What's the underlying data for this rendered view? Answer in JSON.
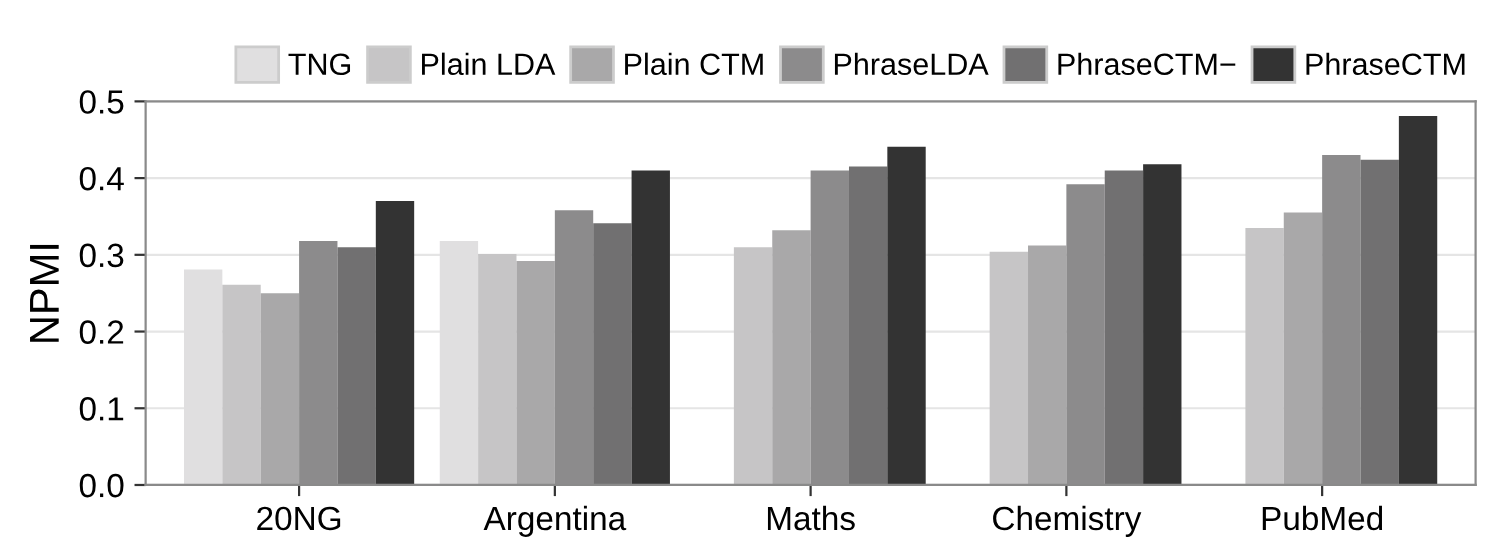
{
  "chart_data": {
    "type": "bar",
    "ylabel": "NPMI",
    "categories": [
      "20NG",
      "Argentina",
      "Maths",
      "Chemistry",
      "PubMed"
    ],
    "series": [
      {
        "name": "TNG",
        "color": "#e0dfe0",
        "values": [
          0.281,
          0.318,
          null,
          null,
          null
        ]
      },
      {
        "name": "Plain LDA",
        "color": "#c6c5c6",
        "values": [
          0.261,
          0.301,
          0.31,
          0.304,
          0.335
        ]
      },
      {
        "name": "Plain CTM",
        "color": "#a9a8a9",
        "values": [
          0.25,
          0.292,
          0.332,
          0.312,
          0.355
        ]
      },
      {
        "name": "PhraseLDA",
        "color": "#8c8b8c",
        "values": [
          0.318,
          0.358,
          0.41,
          0.392,
          0.43
        ]
      },
      {
        "name": "PhraseCTM−",
        "color": "#717071",
        "values": [
          0.31,
          0.341,
          0.415,
          0.41,
          0.424
        ]
      },
      {
        "name": "PhraseCTM",
        "color": "#333333",
        "values": [
          0.37,
          0.41,
          0.441,
          0.418,
          0.481
        ]
      }
    ],
    "ylim": [
      0,
      0.5
    ],
    "yticks": [
      {
        "value": 0,
        "label": "0.0"
      },
      0.1,
      0.2,
      0.3,
      0.4,
      0.5
    ],
    "grid": "y",
    "legend": "top"
  }
}
